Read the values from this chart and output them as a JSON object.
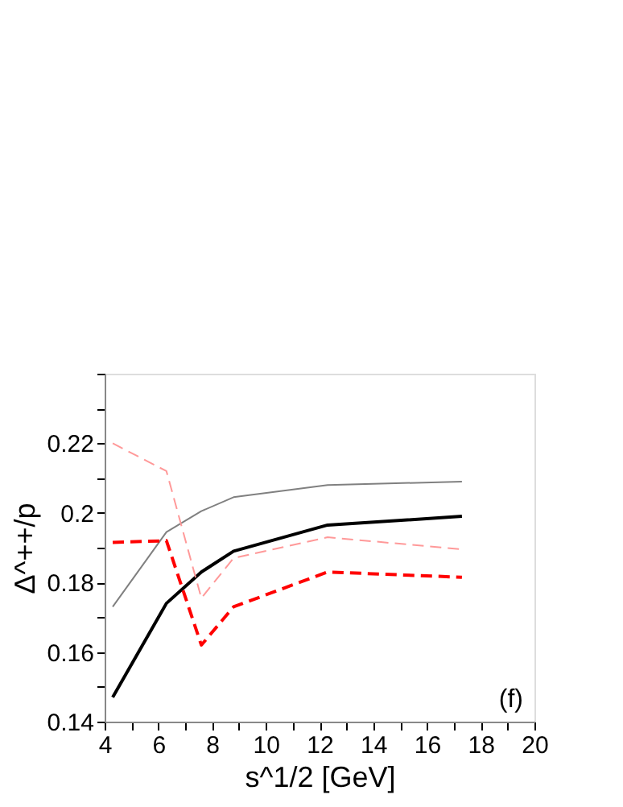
{
  "chart_data": {
    "type": "line",
    "xlabel": "s^1/2 [GeV]",
    "ylabel": "Δ^++/p",
    "annotations": [
      "(f)"
    ],
    "x": [
      4.3,
      6.3,
      7.6,
      8.8,
      12.3,
      17.3
    ],
    "xlim": [
      4,
      20
    ],
    "xticks": [
      4,
      {
        "value": 5,
        "label": null
      },
      6,
      {
        "value": 7,
        "label": null
      },
      8,
      {
        "value": 9,
        "label": null
      },
      10,
      {
        "value": 11,
        "label": null
      },
      12,
      {
        "value": 13,
        "label": null
      },
      14,
      {
        "value": 15,
        "label": null
      },
      16,
      {
        "value": 17,
        "label": null
      },
      18,
      {
        "value": 19,
        "label": null
      },
      20
    ],
    "ylim": [
      0.14,
      0.24
    ],
    "yticks": [
      0.14,
      {
        "value": 0.15,
        "label": null
      },
      0.16,
      {
        "value": 0.17,
        "label": null
      },
      0.18,
      {
        "value": 0.19,
        "label": null
      },
      0.2,
      {
        "value": 0.21,
        "label": null
      },
      0.22,
      {
        "value": 0.23,
        "label": null
      },
      {
        "value": 0.24,
        "label": null
      }
    ],
    "grid": false,
    "marker": "none",
    "series": [
      {
        "color": "#000000",
        "line_style": "solid",
        "values": [
          0.147,
          0.174,
          0.183,
          0.189,
          0.1965,
          0.199
        ]
      },
      {
        "color": "#808080",
        "line_style": "solid",
        "values": [
          0.173,
          0.1945,
          0.2005,
          0.2045,
          0.208,
          0.209
        ]
      },
      {
        "color": "#ff9999",
        "line_style": "dashed",
        "values": [
          0.22,
          0.212,
          0.1755,
          0.187,
          0.193,
          0.1895
        ]
      },
      {
        "color": "#ff0000",
        "line_style": "dashed",
        "values": [
          0.1915,
          0.192,
          0.162,
          0.173,
          0.183,
          0.1815
        ]
      }
    ]
  }
}
